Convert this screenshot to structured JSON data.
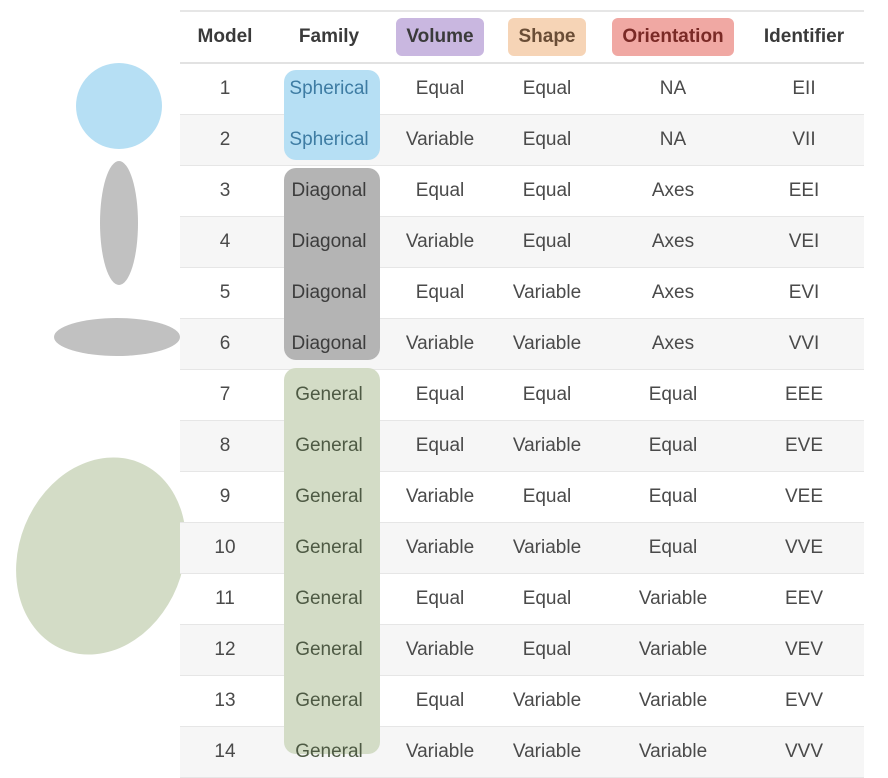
{
  "header": {
    "model": "Model",
    "family": "Family",
    "volume": "Volume",
    "shape": "Shape",
    "orientation": "Orientation",
    "identifier": "Identifier"
  },
  "colors": {
    "volume_pill": "#c9b7e0",
    "shape_pill": "#f6d4b6",
    "orientation_pill": "#f0a8a3",
    "spherical": "#b6dff4",
    "diagonal": "#c1c1c1",
    "general": "#d3dcc6",
    "spherical_text": "#3e7ca3"
  },
  "rows": [
    {
      "model": "1",
      "family": "Spherical",
      "volume": "Equal",
      "shape": "Equal",
      "orientation": "NA",
      "identifier": "EII"
    },
    {
      "model": "2",
      "family": "Spherical",
      "volume": "Variable",
      "shape": "Equal",
      "orientation": "NA",
      "identifier": "VII"
    },
    {
      "model": "3",
      "family": "Diagonal",
      "volume": "Equal",
      "shape": "Equal",
      "orientation": "Axes",
      "identifier": "EEI"
    },
    {
      "model": "4",
      "family": "Diagonal",
      "volume": "Variable",
      "shape": "Equal",
      "orientation": "Axes",
      "identifier": "VEI"
    },
    {
      "model": "5",
      "family": "Diagonal",
      "volume": "Equal",
      "shape": "Variable",
      "orientation": "Axes",
      "identifier": "EVI"
    },
    {
      "model": "6",
      "family": "Diagonal",
      "volume": "Variable",
      "shape": "Variable",
      "orientation": "Axes",
      "identifier": "VVI"
    },
    {
      "model": "7",
      "family": "General",
      "volume": "Equal",
      "shape": "Equal",
      "orientation": "Equal",
      "identifier": "EEE"
    },
    {
      "model": "8",
      "family": "General",
      "volume": "Equal",
      "shape": "Variable",
      "orientation": "Equal",
      "identifier": "EVE"
    },
    {
      "model": "9",
      "family": "General",
      "volume": "Variable",
      "shape": "Equal",
      "orientation": "Equal",
      "identifier": "VEE"
    },
    {
      "model": "10",
      "family": "General",
      "volume": "Variable",
      "shape": "Variable",
      "orientation": "Equal",
      "identifier": "VVE"
    },
    {
      "model": "11",
      "family": "General",
      "volume": "Equal",
      "shape": "Equal",
      "orientation": "Variable",
      "identifier": "EEV"
    },
    {
      "model": "12",
      "family": "General",
      "volume": "Variable",
      "shape": "Equal",
      "orientation": "Variable",
      "identifier": "VEV"
    },
    {
      "model": "13",
      "family": "General",
      "volume": "Equal",
      "shape": "Variable",
      "orientation": "Variable",
      "identifier": "EVV"
    },
    {
      "model": "14",
      "family": "General",
      "volume": "Variable",
      "shape": "Variable",
      "orientation": "Variable",
      "identifier": "VVV"
    }
  ]
}
